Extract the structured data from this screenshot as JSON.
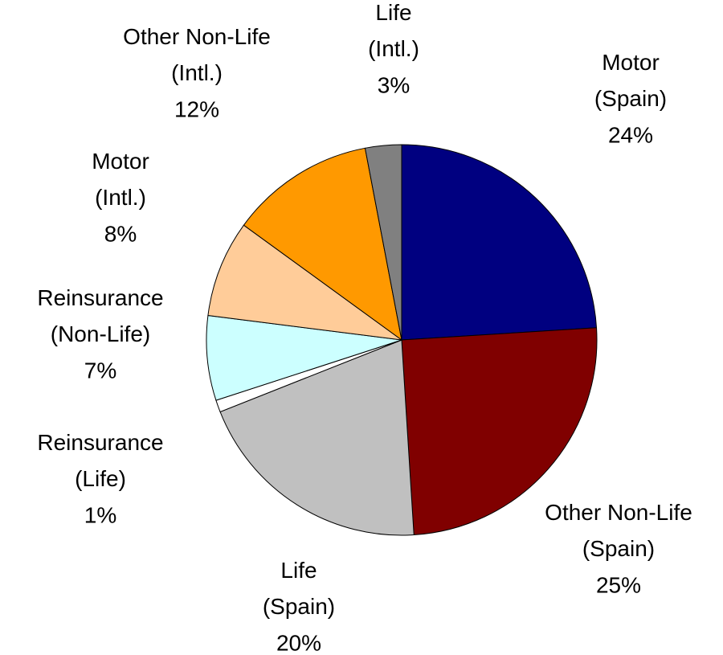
{
  "chart_data": {
    "type": "pie",
    "categories": [
      "Motor (Spain)",
      "Other Non-Life (Spain)",
      "Life (Spain)",
      "Reinsurance (Life)",
      "Reinsurance (Non-Life)",
      "Motor (Intl.)",
      "Other Non-Life (Intl.)",
      "Life (Intl.)"
    ],
    "values": [
      24,
      25,
      20,
      1,
      7,
      8,
      12,
      3
    ],
    "value_labels": [
      "24%",
      "25%",
      "20%",
      "1%",
      "7%",
      "8%",
      "12%",
      "3%"
    ],
    "colors": [
      "#000080",
      "#800000",
      "#c0c0c0",
      "#ffffff",
      "#ccffff",
      "#ffcc99",
      "#ff9900",
      "#808080"
    ]
  }
}
